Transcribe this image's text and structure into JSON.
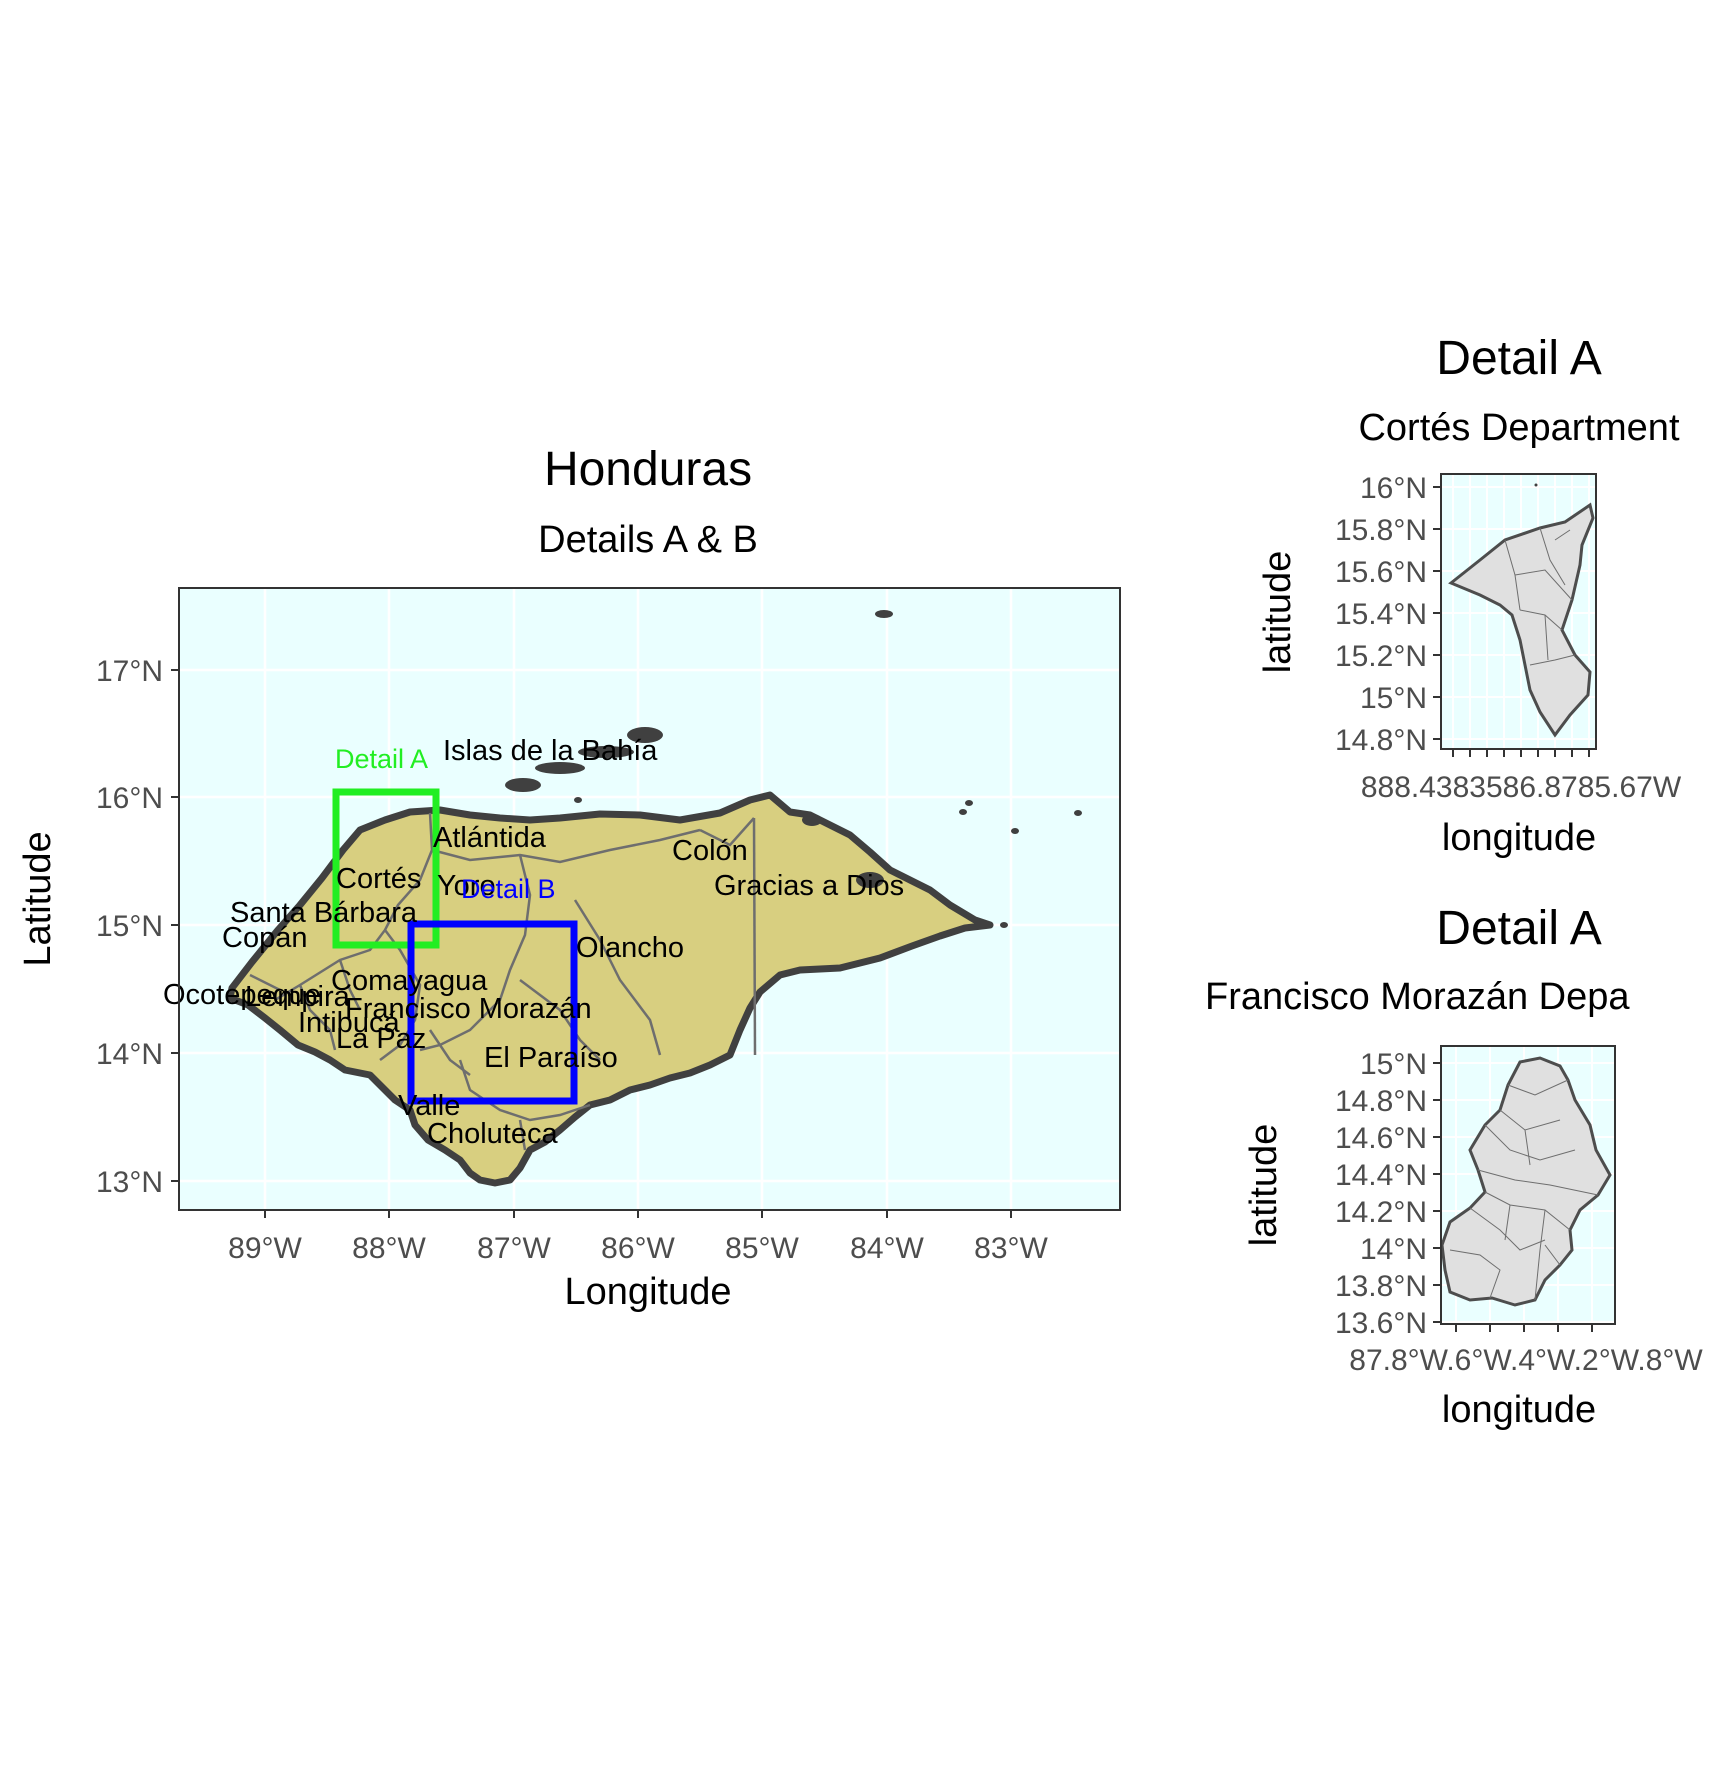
{
  "main_map": {
    "title": "Honduras",
    "subtitle": "Details A & B",
    "xlabel": "Longitude",
    "ylabel": "Latitude",
    "x_ticks": [
      "89°W",
      "88°W",
      "87°W",
      "86°W",
      "85°W",
      "84°W",
      "83°W"
    ],
    "y_ticks": [
      "17°N",
      "16°N",
      "15°N",
      "14°N",
      "13°N"
    ],
    "department_labels": [
      "Islas de la Bahía",
      "Atlántida",
      "Colón",
      "Gracias a Dios",
      "Cortés",
      "Yoro",
      "Santa Bárbara",
      "Copán",
      "Olancho",
      "Ocotepeque",
      "Lempira",
      "Comayagua",
      "Francisco Morazán",
      "Intibucá",
      "La Paz",
      "El Paraíso",
      "Valle",
      "Choluteca"
    ],
    "detail_a_label": "Detail A",
    "detail_b_label": "Detail B",
    "colors": {
      "land": "#d8cf80",
      "sea": "#eaffff",
      "detail_a": "#22ee22",
      "detail_b": "#0000ff",
      "border": "#404040"
    }
  },
  "inset_top": {
    "title": "Detail A",
    "subtitle": "Cortés Department",
    "xlabel": "longitude",
    "ylabel": "latitude",
    "y_ticks": [
      "16°N",
      "15.8°N",
      "15.6°N",
      "15.4°N",
      "15.2°N",
      "15°N",
      "14.8°N"
    ],
    "x_ticks_text": "888.4383586.8785.67W"
  },
  "inset_bottom": {
    "title": "Detail A",
    "subtitle": "Francisco Morazán Depa",
    "xlabel": "longitude",
    "ylabel": "latitude",
    "y_ticks": [
      "15°N",
      "14.8°N",
      "14.6°N",
      "14.4°N",
      "14.2°N",
      "14°N",
      "13.8°N",
      "13.6°N"
    ],
    "x_ticks_text": "87.8°W.6°W.4°W.2°W.8°W"
  }
}
